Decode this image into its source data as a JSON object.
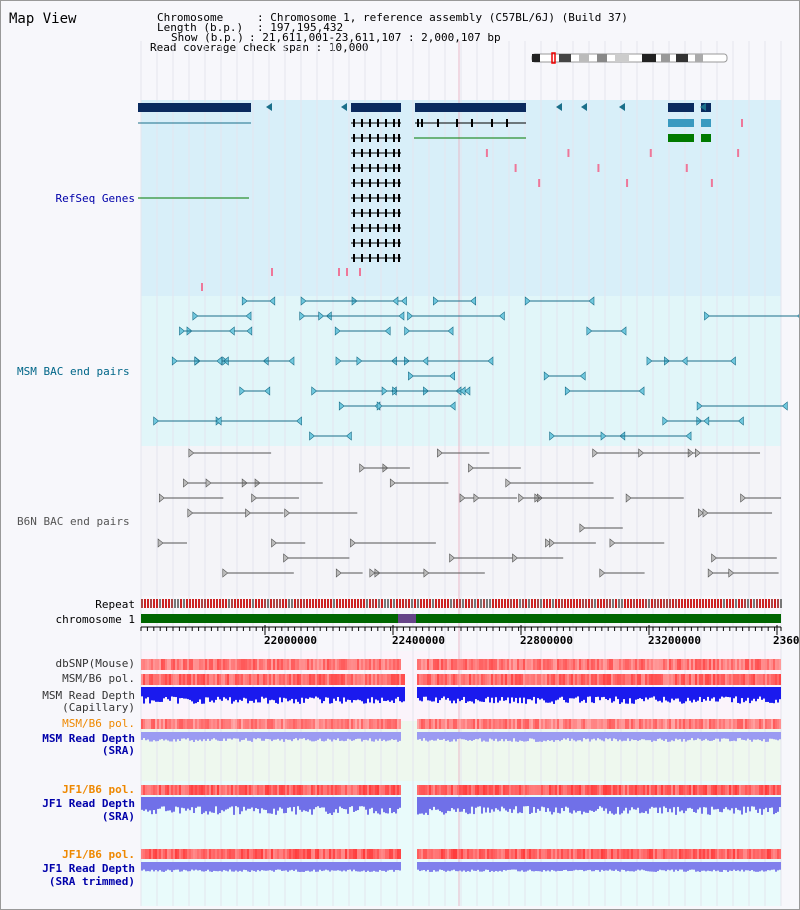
{
  "view": {
    "title": "Map View"
  },
  "info": {
    "chromosome_label": "Chromosome",
    "chromosome_value": ": Chromosome 1, reference assembly (C57BL/6J) (Build 37)",
    "length_label": "Length (b.p.)",
    "length_value": ": 197,195,432",
    "show_label": "Show (b.p.)",
    "show_value": ": 21,611,001-23,611,107 : 2,000,107 bp",
    "coverage_label": "Read coverage check span",
    "coverage_value": ": 10,000"
  },
  "tracks": {
    "refseq": "RefSeq Genes",
    "msm_bac": "MSM BAC end pairs",
    "b6n_bac": "B6N BAC end pairs",
    "repeat": "Repeat",
    "chromosome": "chromosome 1",
    "dbsnp": "dbSNP(Mouse)",
    "msm_b6_pol_1": "MSM/B6 pol.",
    "msm_depth_cap_1": "MSM Read Depth",
    "msm_depth_cap_2": "(Capillary)",
    "msm_b6_pol_2": "MSM/B6 pol.",
    "msm_depth_sra_1": "MSM Read Depth",
    "msm_depth_sra_2": "(SRA)",
    "jf1_b6_pol_1": "JF1/B6 pol.",
    "jf1_depth_sra_1": "JF1 Read Depth",
    "jf1_depth_sra_2": "(SRA)",
    "jf1_b6_pol_2": "JF1/B6 pol.",
    "jf1_depth_trim_1": "JF1 Read Depth",
    "jf1_depth_trim_2": "(SRA trimmed)"
  },
  "axis": {
    "ticks": [
      "22000000",
      "22400000",
      "22800000",
      "23200000",
      "2360"
    ]
  },
  "colors": {
    "refseq_bg": "#d8eff9",
    "msm_bac_bg": "#e1f6f9",
    "navy": "#0a2a5e",
    "teal": "#1a6f8a",
    "gene_green": "#007a00",
    "msm_label": "#006688",
    "b6n_label": "#555555",
    "refseq_label": "#0000aa",
    "orange_label": "#ee8800",
    "blue_label": "#0000aa"
  }
}
